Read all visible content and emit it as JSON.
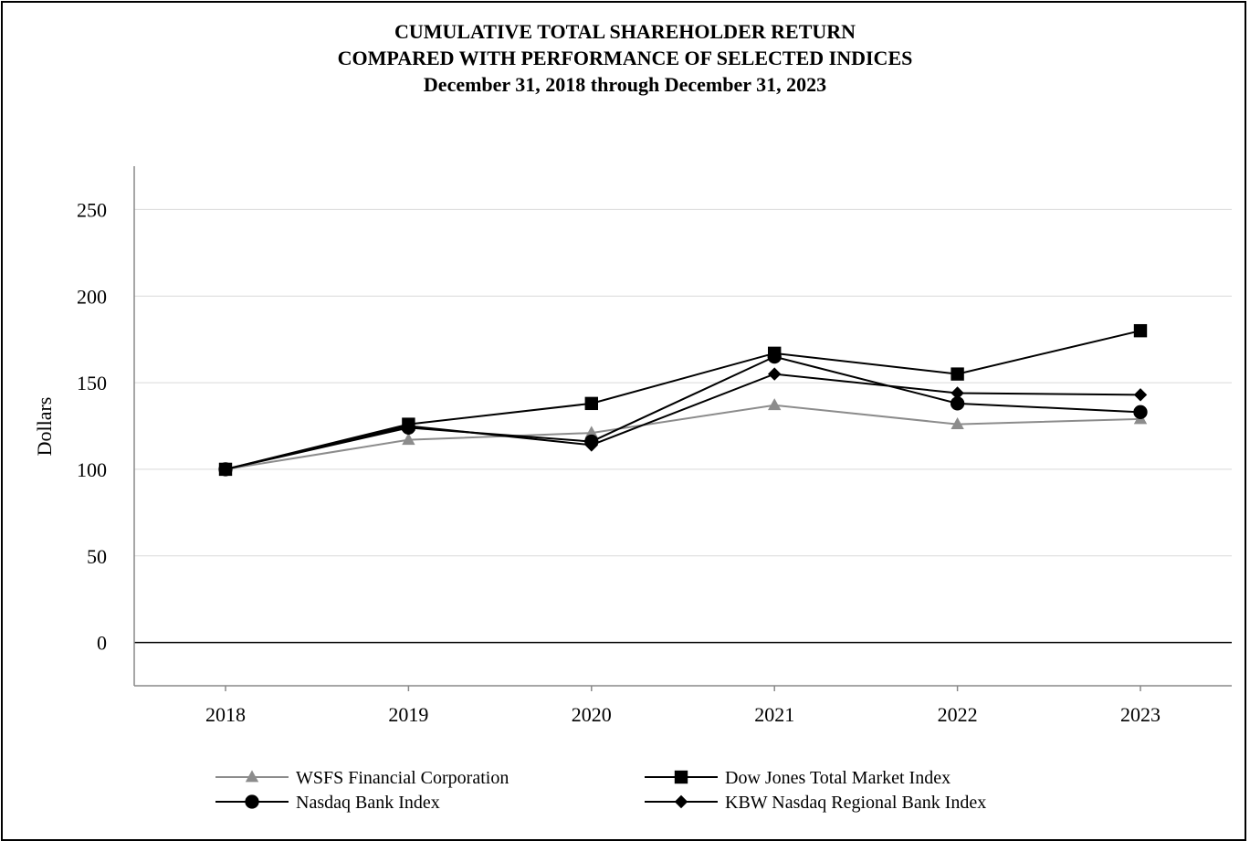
{
  "chart_data": {
    "type": "line",
    "title": "CUMULATIVE TOTAL SHAREHOLDER RETURN",
    "subtitle": "COMPARED WITH PERFORMANCE OF SELECTED INDICES",
    "subtitle2": "December 31, 2018 through December 31, 2023",
    "xlabel": "",
    "ylabel": "Dollars",
    "ylim": [
      -25,
      275
    ],
    "yticks": [
      0,
      50,
      100,
      150,
      200,
      250
    ],
    "grid": true,
    "legend_position": "bottom",
    "x": [
      "2018",
      "2019",
      "2020",
      "2021",
      "2022",
      "2023"
    ],
    "series": [
      {
        "name": "WSFS Financial Corporation",
        "values": [
          100,
          117,
          121,
          137,
          126,
          129
        ],
        "color": "#8c8c8c",
        "marker": "triangle"
      },
      {
        "name": "Dow Jones Total Market Index",
        "values": [
          100,
          126,
          138,
          167,
          155,
          180
        ],
        "color": "#000000",
        "marker": "square"
      },
      {
        "name": "Nasdaq Bank Index",
        "values": [
          100,
          124,
          116,
          165,
          138,
          133
        ],
        "color": "#000000",
        "marker": "circle"
      },
      {
        "name": "KBW Nasdaq Regional Bank Index",
        "values": [
          100,
          125,
          114,
          155,
          144,
          143
        ],
        "color": "#000000",
        "marker": "diamond"
      }
    ]
  }
}
